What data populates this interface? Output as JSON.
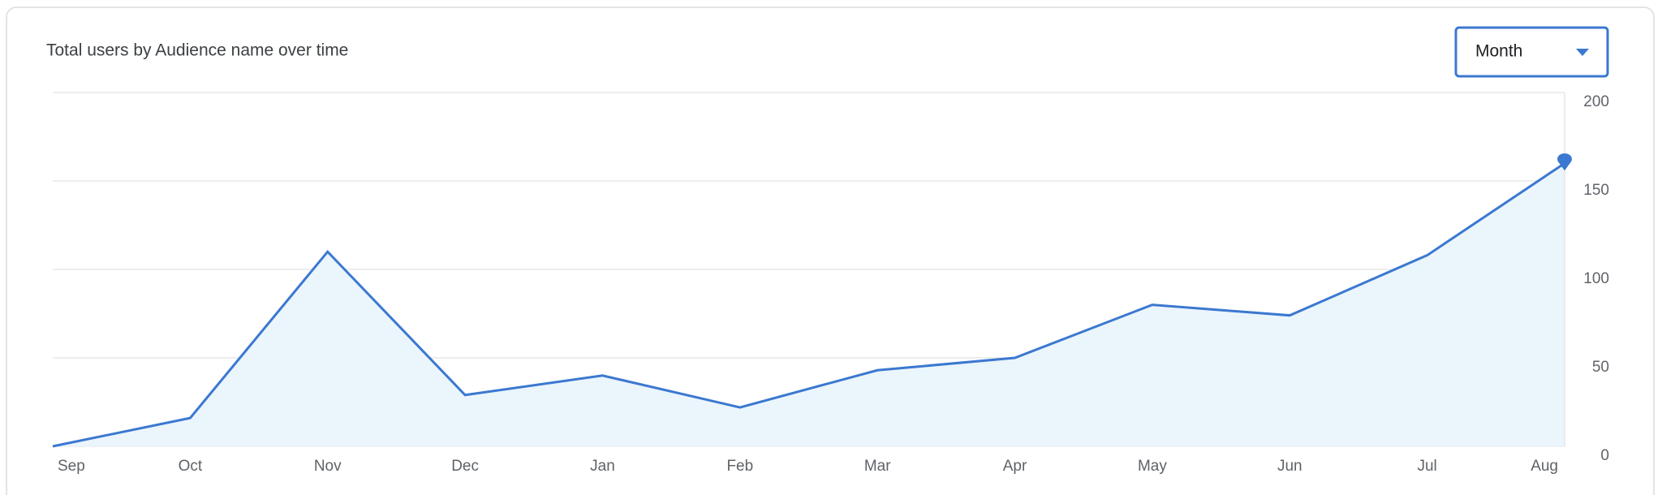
{
  "chart_data": {
    "type": "line",
    "title": "Total users by Audience name over time",
    "dropdown": "Month",
    "categories": [
      "Sep",
      "Oct",
      "Nov",
      "Dec",
      "Jan",
      "Feb",
      "Mar",
      "Apr",
      "May",
      "Jun",
      "Jul",
      "Aug"
    ],
    "series": [
      {
        "color": "#3b78d0",
        "values": [
          0,
          16,
          110,
          29,
          40,
          22,
          43,
          50,
          80,
          74,
          108,
          160
        ]
      }
    ],
    "ylim": [
      0,
      200
    ],
    "yticks": [
      0,
      50,
      100,
      150,
      200
    ],
    "grid": true,
    "area_color": "#eaf5fc"
  }
}
